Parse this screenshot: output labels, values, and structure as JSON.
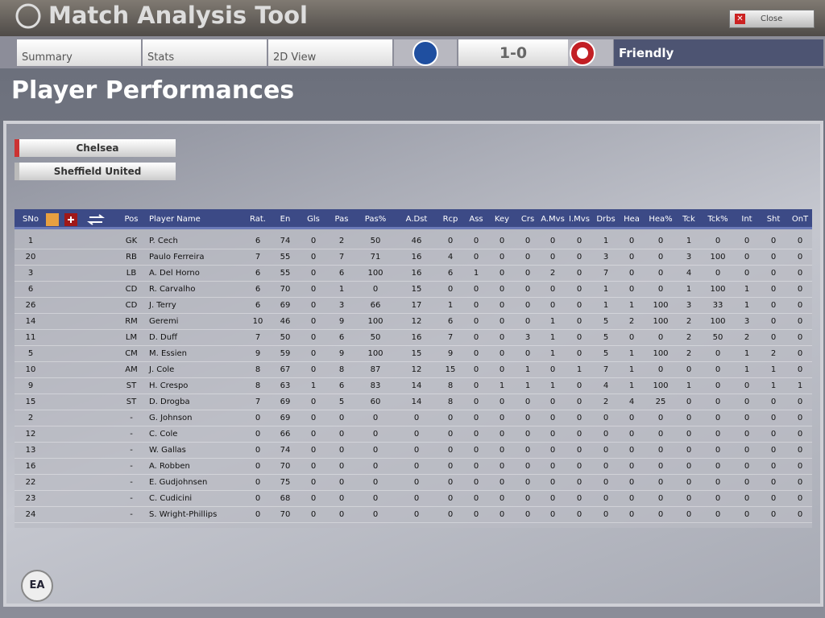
{
  "header": {
    "title": "Match Analysis Tool",
    "close": "Close"
  },
  "tabs": [
    "Summary",
    "Stats",
    "2D View"
  ],
  "match": {
    "score": "1-0",
    "competition": "Friendly"
  },
  "page_title": "Player Performances",
  "teams": [
    "Chelsea",
    "Sheffield United"
  ],
  "table": {
    "columns": [
      "SNo",
      "Pos",
      "Player Name",
      "Rat.",
      "En",
      "Gls",
      "Pas",
      "Pas%",
      "A.Dst",
      "Rcp",
      "Ass",
      "Key",
      "Crs",
      "A.Mvs",
      "I.Mvs",
      "Drbs",
      "Hea",
      "Hea%",
      "Tck",
      "Tck%",
      "Int",
      "Sht",
      "OnT"
    ],
    "rows": [
      [
        1,
        "GK",
        "P. Cech",
        6,
        74,
        0,
        2,
        50,
        46,
        0,
        0,
        0,
        0,
        0,
        0,
        1,
        0,
        0,
        1,
        0,
        0,
        0,
        0
      ],
      [
        20,
        "RB",
        "Paulo Ferreira",
        7,
        55,
        0,
        7,
        71,
        16,
        4,
        0,
        0,
        0,
        0,
        0,
        3,
        0,
        0,
        3,
        100,
        0,
        0,
        0
      ],
      [
        3,
        "LB",
        "A. Del Horno",
        6,
        55,
        0,
        6,
        100,
        16,
        6,
        1,
        0,
        0,
        2,
        0,
        7,
        0,
        0,
        4,
        0,
        0,
        0,
        0
      ],
      [
        6,
        "CD",
        "R. Carvalho",
        6,
        70,
        0,
        1,
        0,
        15,
        0,
        0,
        0,
        0,
        0,
        0,
        1,
        0,
        0,
        1,
        100,
        1,
        0,
        0
      ],
      [
        26,
        "CD",
        "J. Terry",
        6,
        69,
        0,
        3,
        66,
        17,
        1,
        0,
        0,
        0,
        0,
        0,
        1,
        1,
        100,
        3,
        33,
        1,
        0,
        0
      ],
      [
        14,
        "RM",
        "Geremi",
        10,
        46,
        0,
        9,
        100,
        12,
        6,
        0,
        0,
        0,
        1,
        0,
        5,
        2,
        100,
        2,
        100,
        3,
        0,
        0
      ],
      [
        11,
        "LM",
        "D. Duff",
        7,
        50,
        0,
        6,
        50,
        16,
        7,
        0,
        0,
        3,
        1,
        0,
        5,
        0,
        0,
        2,
        50,
        2,
        0,
        0
      ],
      [
        5,
        "CM",
        "M. Essien",
        9,
        59,
        0,
        9,
        100,
        15,
        9,
        0,
        0,
        0,
        1,
        0,
        5,
        1,
        100,
        2,
        0,
        1,
        2,
        0
      ],
      [
        10,
        "AM",
        "J. Cole",
        8,
        67,
        0,
        8,
        87,
        12,
        15,
        0,
        0,
        1,
        0,
        1,
        7,
        1,
        0,
        0,
        0,
        1,
        1,
        0
      ],
      [
        9,
        "ST",
        "H. Crespo",
        8,
        63,
        1,
        6,
        83,
        14,
        8,
        0,
        1,
        1,
        1,
        0,
        4,
        1,
        100,
        1,
        0,
        0,
        1,
        1
      ],
      [
        15,
        "ST",
        "D. Drogba",
        7,
        69,
        0,
        5,
        60,
        14,
        8,
        0,
        0,
        0,
        0,
        0,
        2,
        4,
        25,
        0,
        0,
        0,
        0,
        0
      ],
      [
        2,
        "-",
        "G. Johnson",
        0,
        69,
        0,
        0,
        0,
        0,
        0,
        0,
        0,
        0,
        0,
        0,
        0,
        0,
        0,
        0,
        0,
        0,
        0,
        0
      ],
      [
        12,
        "-",
        "C. Cole",
        0,
        66,
        0,
        0,
        0,
        0,
        0,
        0,
        0,
        0,
        0,
        0,
        0,
        0,
        0,
        0,
        0,
        0,
        0,
        0
      ],
      [
        13,
        "-",
        "W. Gallas",
        0,
        74,
        0,
        0,
        0,
        0,
        0,
        0,
        0,
        0,
        0,
        0,
        0,
        0,
        0,
        0,
        0,
        0,
        0,
        0
      ],
      [
        16,
        "-",
        "A. Robben",
        0,
        70,
        0,
        0,
        0,
        0,
        0,
        0,
        0,
        0,
        0,
        0,
        0,
        0,
        0,
        0,
        0,
        0,
        0,
        0
      ],
      [
        22,
        "-",
        "E. Gudjohnsen",
        0,
        75,
        0,
        0,
        0,
        0,
        0,
        0,
        0,
        0,
        0,
        0,
        0,
        0,
        0,
        0,
        0,
        0,
        0,
        0
      ],
      [
        23,
        "-",
        "C. Cudicini",
        0,
        68,
        0,
        0,
        0,
        0,
        0,
        0,
        0,
        0,
        0,
        0,
        0,
        0,
        0,
        0,
        0,
        0,
        0,
        0
      ],
      [
        24,
        "-",
        "S. Wright-Phillips",
        0,
        70,
        0,
        0,
        0,
        0,
        0,
        0,
        0,
        0,
        0,
        0,
        0,
        0,
        0,
        0,
        0,
        0,
        0,
        0
      ]
    ]
  }
}
